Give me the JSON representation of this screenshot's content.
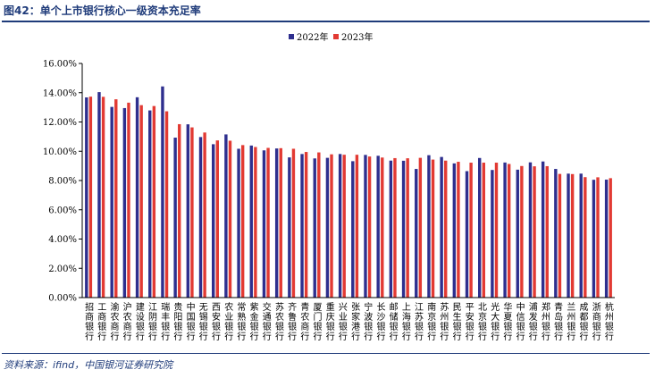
{
  "header": {
    "title": "图42：单个上市银行核心一级资本充足率"
  },
  "footer": {
    "source": "资料来源：ifind，中国银河证券研究院"
  },
  "colors": {
    "brand": "#1f3b7a",
    "series_2022": "#2e2f8e",
    "series_2023": "#e23a33"
  },
  "chart_data": {
    "type": "bar",
    "title": "",
    "xlabel": "",
    "ylabel": "",
    "ylim": [
      0,
      16
    ],
    "yticks": [
      "0.00%",
      "2.00%",
      "4.00%",
      "6.00%",
      "8.00%",
      "10.00%",
      "12.00%",
      "14.00%",
      "16.00%"
    ],
    "legend_position": "top-center",
    "grid": false,
    "categories": [
      "招商银行",
      "工商银行",
      "渝农商行",
      "沪农商行",
      "建设银行",
      "江阴银行",
      "瑞丰银行",
      "贵阳银行",
      "中国银行",
      "无锡银行",
      "西安银行",
      "农业银行",
      "常熟银行",
      "紫金银行",
      "交通银行",
      "苏农银行",
      "齐鲁银行",
      "青农商行",
      "厦门银行",
      "重庆银行",
      "兴业银行",
      "张家港行",
      "宁波银行",
      "长沙银行",
      "邮储银行",
      "上海银行",
      "江苏银行",
      "南京银行",
      "苏州银行",
      "民生银行",
      "平安银行",
      "北京银行",
      "光大银行",
      "华夏银行",
      "中信银行",
      "浦发银行",
      "郑州银行",
      "青岛银行",
      "兰州银行",
      "成都银行",
      "浙商银行",
      "杭州银行"
    ],
    "series": [
      {
        "name": "2022年",
        "color": "#2e2f8e",
        "values": [
          13.68,
          14.04,
          13.03,
          12.95,
          13.69,
          12.79,
          14.43,
          10.93,
          11.84,
          10.97,
          10.48,
          11.15,
          10.17,
          10.39,
          10.06,
          10.19,
          9.58,
          9.81,
          9.51,
          9.55,
          9.81,
          9.32,
          9.75,
          9.69,
          9.36,
          9.35,
          8.79,
          9.73,
          9.61,
          9.17,
          8.64,
          9.54,
          8.72,
          9.23,
          8.74,
          9.24,
          9.3,
          8.79,
          8.47,
          8.47,
          8.05,
          8.06
        ]
      },
      {
        "name": "2023年",
        "color": "#e23a33",
        "values": [
          13.73,
          13.72,
          13.55,
          13.32,
          13.15,
          13.09,
          12.73,
          11.85,
          11.63,
          11.28,
          10.74,
          10.72,
          10.42,
          10.29,
          10.23,
          10.21,
          10.17,
          9.95,
          9.92,
          9.79,
          9.76,
          9.76,
          9.64,
          9.57,
          9.53,
          9.52,
          9.55,
          9.43,
          9.36,
          9.28,
          9.22,
          9.22,
          9.22,
          9.13,
          8.99,
          8.97,
          8.98,
          8.45,
          8.44,
          8.23,
          8.22,
          8.16
        ]
      }
    ]
  }
}
